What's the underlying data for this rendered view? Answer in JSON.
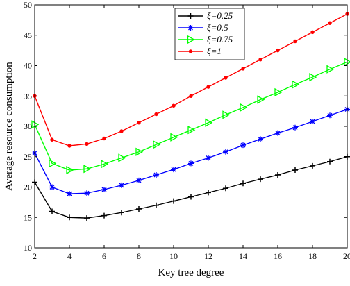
{
  "chart_data": {
    "type": "line",
    "xlabel": "Key tree degree",
    "ylabel": "Average resource consumption",
    "xlim": [
      2,
      20
    ],
    "ylim": [
      10,
      50
    ],
    "xticks": [
      2,
      4,
      6,
      8,
      10,
      12,
      14,
      16,
      18,
      20
    ],
    "yticks": [
      10,
      15,
      20,
      25,
      30,
      35,
      40,
      45,
      50
    ],
    "grid": false,
    "legend_position": "top-center",
    "x": [
      2,
      3,
      4,
      5,
      6,
      7,
      8,
      9,
      10,
      11,
      12,
      13,
      14,
      15,
      16,
      17,
      18,
      19,
      20
    ],
    "series": [
      {
        "name": "ξ=0.25",
        "color": "#000000",
        "marker": "plus",
        "values": [
          20.8,
          16.0,
          15.0,
          14.9,
          15.3,
          15.8,
          16.4,
          17.0,
          17.7,
          18.4,
          19.1,
          19.8,
          20.6,
          21.3,
          22.0,
          22.8,
          23.5,
          24.2,
          25.0
        ]
      },
      {
        "name": "ξ=0.5",
        "color": "#0000ff",
        "marker": "asterisk",
        "values": [
          25.6,
          20.0,
          18.9,
          19.0,
          19.6,
          20.3,
          21.1,
          22.0,
          22.9,
          23.9,
          24.8,
          25.8,
          26.9,
          27.9,
          28.9,
          29.8,
          30.8,
          31.8,
          32.8
        ]
      },
      {
        "name": "ξ=0.75",
        "color": "#00ff00",
        "marker": "triangle-right",
        "values": [
          30.3,
          23.9,
          22.8,
          23.0,
          23.8,
          24.8,
          25.8,
          27.0,
          28.2,
          29.4,
          30.6,
          31.9,
          33.1,
          34.4,
          35.6,
          36.9,
          38.1,
          39.4,
          40.6
        ]
      },
      {
        "name": "ξ=1",
        "color": "#ff0000",
        "marker": "dot",
        "values": [
          35.0,
          27.8,
          26.8,
          27.1,
          28.0,
          29.2,
          30.6,
          32.0,
          33.4,
          35.0,
          36.5,
          38.0,
          39.5,
          41.0,
          42.5,
          44.0,
          45.5,
          47.0,
          48.5
        ]
      }
    ]
  }
}
